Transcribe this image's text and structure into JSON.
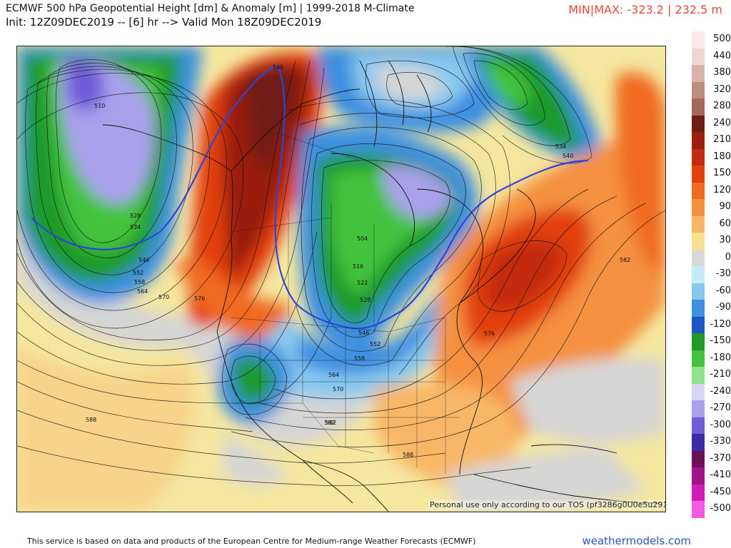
{
  "header": {
    "title": "ECMWF 500 hPa Geopotential Height [dm] & Anomaly [m] | 1999-2018 M-Climate",
    "init": "Init: 12Z09DEC2019 -- [6] hr --> Valid Mon 18Z09DEC2019",
    "minmax": "MIN|MAX: -323.2 | 232.5 m"
  },
  "legend": {
    "levels": [
      {
        "label": "500",
        "color": "#fbe9e9"
      },
      {
        "label": "440",
        "color": "#f0d6d2"
      },
      {
        "label": "380",
        "color": "#d9b3ab"
      },
      {
        "label": "320",
        "color": "#bf8c80"
      },
      {
        "label": "280",
        "color": "#a3685a"
      },
      {
        "label": "240",
        "color": "#6f1d14"
      },
      {
        "label": "210",
        "color": "#9a1f0e"
      },
      {
        "label": "180",
        "color": "#c42a0f"
      },
      {
        "label": "150",
        "color": "#e2400f"
      },
      {
        "label": "120",
        "color": "#f06a20"
      },
      {
        "label": "90",
        "color": "#f5913f"
      },
      {
        "label": "60",
        "color": "#f8b767"
      },
      {
        "label": "30",
        "color": "#fbe08f"
      },
      {
        "label": "0",
        "color": "#d9d9d9"
      },
      {
        "label": "-30",
        "color": "#c2ecf7"
      },
      {
        "label": "-60",
        "color": "#87c8ef"
      },
      {
        "label": "-90",
        "color": "#3d8fe0"
      },
      {
        "label": "-120",
        "color": "#1e55c6"
      },
      {
        "label": "-150",
        "color": "#1f9a2a"
      },
      {
        "label": "-180",
        "color": "#43c23d"
      },
      {
        "label": "-210",
        "color": "#8fe28b"
      },
      {
        "label": "-240",
        "color": "#d7d7f4"
      },
      {
        "label": "-270",
        "color": "#a9a0ec"
      },
      {
        "label": "-300",
        "color": "#6f5cd8"
      },
      {
        "label": "-330",
        "color": "#3a2aa6"
      },
      {
        "label": "-370",
        "color": "#6b0f5a"
      },
      {
        "label": "-410",
        "color": "#a2138a"
      },
      {
        "label": "-450",
        "color": "#d21cba"
      },
      {
        "label": "-500",
        "color": "#f35ae0"
      }
    ]
  },
  "map": {
    "contour_labels": [
      "510",
      "528",
      "534",
      "546",
      "552",
      "558",
      "564",
      "570",
      "576",
      "582",
      "588",
      "540",
      "504",
      "516",
      "522",
      "528",
      "546",
      "552",
      "558",
      "564",
      "570",
      "576",
      "582",
      "588",
      "534",
      "540",
      "582"
    ],
    "tos": "Personal use only according to our TOS (pf3286g0U0e5u291)"
  },
  "footer": {
    "text": "This service is based on data and products of the European Centre for Medium-range Weather Forecasts (ECMWF)",
    "brand": "weathermodels.com"
  }
}
